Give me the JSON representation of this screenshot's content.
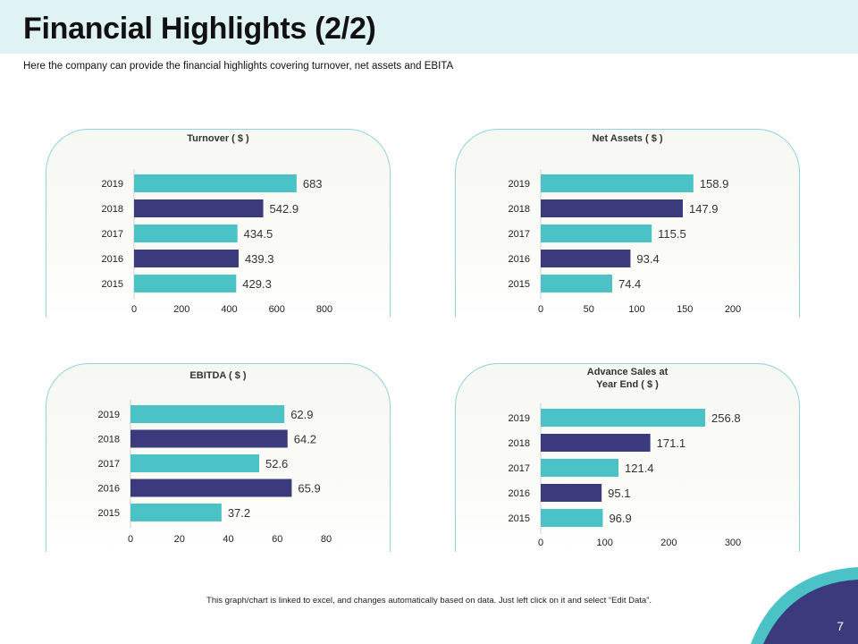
{
  "title": "Financial Highlights (2/2)",
  "subtitle": "Here the company can provide  the financial highlights covering turnover,  net assets and EBITA",
  "footer": "This graph/chart is linked to excel, and changes automatically based on data. Just left click on it and select “Edit Data”.",
  "page_number": "7",
  "colors": {
    "teal": "#4bc3c6",
    "navy": "#3a3a7d",
    "border": "#8fd3dd",
    "header_bg": "#dff3f5"
  },
  "chart_data": [
    {
      "type": "bar",
      "orientation": "horizontal",
      "title": "Turnover  ( $ )",
      "categories": [
        "2019",
        "2018",
        "2017",
        "2016",
        "2015"
      ],
      "values": [
        683,
        542.9,
        434.5,
        439.3,
        429.3
      ],
      "labels": [
        "683",
        "542.9",
        "434.5",
        "439.3",
        "429.3"
      ],
      "xlim": [
        0,
        800
      ],
      "xticks": [
        "0",
        "200",
        "400",
        "600",
        "800"
      ]
    },
    {
      "type": "bar",
      "orientation": "horizontal",
      "title": "Net Assets ( $ )",
      "categories": [
        "2019",
        "2018",
        "2017",
        "2016",
        "2015"
      ],
      "values": [
        158.9,
        147.9,
        115.5,
        93.4,
        74.4
      ],
      "labels": [
        "158.9",
        "147.9",
        "115.5",
        "93.4",
        "74.4"
      ],
      "xlim": [
        0,
        200
      ],
      "xticks": [
        "0",
        "50",
        "100",
        "150",
        "200"
      ]
    },
    {
      "type": "bar",
      "orientation": "horizontal",
      "title": "EBITDA  ( $ )",
      "categories": [
        "2019",
        "2018",
        "2017",
        "2016",
        "2015"
      ],
      "values": [
        62.9,
        64.2,
        52.6,
        65.9,
        37.2
      ],
      "labels": [
        "62.9",
        "64.2",
        "52.6",
        "65.9",
        "37.2"
      ],
      "xlim": [
        0,
        80
      ],
      "xticks": [
        "0",
        "20",
        "40",
        "60",
        "80"
      ]
    },
    {
      "type": "bar",
      "orientation": "horizontal",
      "title": "Advance Sales at\nYear End  ( $ )",
      "title_lines": [
        "Advance Sales at",
        "Year End  ( $ )"
      ],
      "categories": [
        "2019",
        "2018",
        "2017",
        "2016",
        "2015"
      ],
      "values": [
        256.8,
        171.1,
        121.4,
        95.1,
        96.9
      ],
      "labels": [
        "256.8",
        "171.1",
        "121.4",
        "95.1",
        "96.9"
      ],
      "xlim": [
        0,
        300
      ],
      "xticks": [
        "0",
        "100",
        "200",
        "300"
      ]
    }
  ]
}
